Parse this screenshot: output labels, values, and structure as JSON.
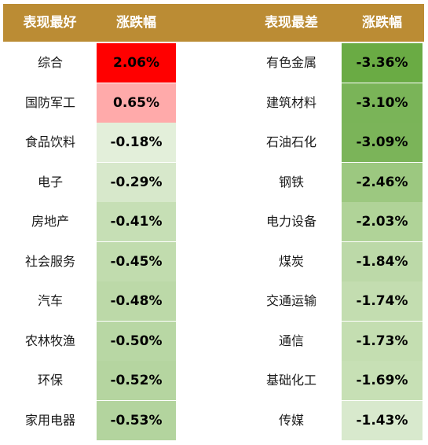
{
  "header": {
    "best_label": "表现最好",
    "best_change_label": "涨跌幅",
    "worst_label": "表现最差",
    "worst_change_label": "涨跌幅"
  },
  "best": [
    {
      "name": "综合",
      "change": "2.06%",
      "color": "#ff0000"
    },
    {
      "name": "国防军工",
      "change": "0.65%",
      "color": "#ffaaaa"
    },
    {
      "name": "食品饮料",
      "change": "-0.18%",
      "color": "#e3efda"
    },
    {
      "name": "电子",
      "change": "-0.29%",
      "color": "#d7e8cb"
    },
    {
      "name": "房地产",
      "change": "-0.41%",
      "color": "#c6dfb5"
    },
    {
      "name": "社会服务",
      "change": "-0.45%",
      "color": "#c1dcae"
    },
    {
      "name": "汽车",
      "change": "-0.48%",
      "color": "#bcd9a8"
    },
    {
      "name": "农林牧渔",
      "change": "-0.50%",
      "color": "#b8d7a4"
    },
    {
      "name": "环保",
      "change": "-0.52%",
      "color": "#b5d5a0"
    },
    {
      "name": "家用电器",
      "change": "-0.53%",
      "color": "#b3d49e"
    }
  ],
  "worst": [
    {
      "name": "有色金属",
      "change": "-3.36%",
      "color": "#6aab44"
    },
    {
      "name": "建筑材料",
      "change": "-3.10%",
      "color": "#7ab458"
    },
    {
      "name": "石油石化",
      "change": "-3.09%",
      "color": "#7bb459"
    },
    {
      "name": "钢铁",
      "change": "-2.46%",
      "color": "#9cc880"
    },
    {
      "name": "电力设备",
      "change": "-2.03%",
      "color": "#b0d398"
    },
    {
      "name": "煤炭",
      "change": "-1.84%",
      "color": "#bcd9a8"
    },
    {
      "name": "交通运输",
      "change": "-1.74%",
      "color": "#c3ddb0"
    },
    {
      "name": "通信",
      "change": "-1.73%",
      "color": "#c4deb1"
    },
    {
      "name": "基础化工",
      "change": "-1.69%",
      "color": "#c7e0b5"
    },
    {
      "name": "传媒",
      "change": "-1.43%",
      "color": "#d8e9cd"
    }
  ]
}
